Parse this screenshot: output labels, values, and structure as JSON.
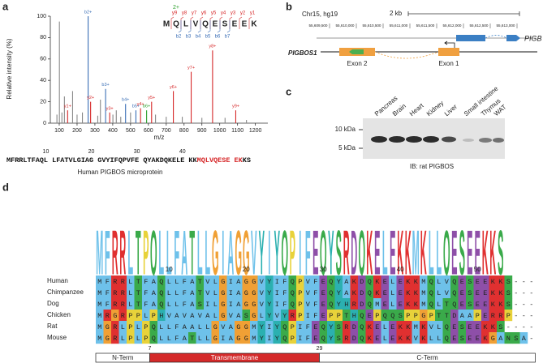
{
  "chart_data": {
    "type": "bar",
    "y_label": "Relative intensity (%)",
    "x_label": "m/z",
    "x": [
      87,
      101,
      115,
      129,
      147,
      175,
      200,
      230,
      262,
      276,
      316,
      331,
      360,
      383,
      401,
      420,
      445,
      472,
      500,
      530,
      556,
      590,
      618,
      640,
      700,
      740,
      790,
      840,
      900,
      960,
      1030,
      1090,
      1150
    ],
    "values": [
      8,
      95,
      10,
      25,
      12,
      30,
      8,
      10,
      100,
      20,
      7,
      22,
      32,
      10,
      8,
      12,
      6,
      18,
      10,
      12,
      14,
      12,
      20,
      8,
      6,
      30,
      6,
      48,
      5,
      68,
      5,
      12,
      3
    ],
    "colors": [
      "#888888",
      "#888888",
      "#888888",
      "#888888",
      "#d62728",
      "#888888",
      "#888888",
      "#888888",
      "#3b6fb6",
      "#d62728",
      "#888888",
      "#888888",
      "#3b6fb6",
      "#d62728",
      "#888888",
      "#888888",
      "#888888",
      "#3b6fb6",
      "#888888",
      "#3b6fb6",
      "#d62728",
      "#2ca02c",
      "#d62728",
      "#888888",
      "#888888",
      "#d62728",
      "#888888",
      "#d62728",
      "#888888",
      "#d62728",
      "#888888",
      "#d62728",
      "#888888"
    ],
    "peak_labels": [
      null,
      null,
      null,
      null,
      "y1+",
      null,
      null,
      null,
      "b2+",
      "y2+",
      null,
      null,
      "b3+",
      "y3+",
      null,
      null,
      null,
      "b4+",
      null,
      "b5+",
      "y4+",
      "b6+",
      "y5+",
      null,
      null,
      "y6+",
      null,
      "y7+",
      null,
      "y8+",
      null,
      "y9+",
      null
    ],
    "xlim": [
      50,
      1270
    ],
    "ylim": [
      0,
      100
    ],
    "xticks": [
      100,
      200,
      300,
      400,
      500,
      600,
      700,
      800,
      900,
      1000,
      1100,
      1200
    ],
    "yticks": [
      0,
      20,
      40,
      60,
      80,
      100
    ]
  },
  "panel_labels": [
    "a",
    "b",
    "c",
    "d"
  ],
  "peptide": {
    "charge": "2+",
    "residues": [
      "M",
      "Q",
      "L",
      "V",
      "Q",
      "E",
      "S",
      "E",
      "E",
      "K"
    ],
    "y_ions": [
      "y9",
      "y8",
      "y7",
      "y6",
      "y5",
      "y4",
      "y3",
      "y2",
      "y1"
    ],
    "b_ions": [
      "b2",
      "b3",
      "b4",
      "b5",
      "b6",
      "b7"
    ]
  },
  "protein": {
    "positions": [
      10,
      20,
      30,
      40
    ],
    "segments": [
      {
        "text": "MFRRLTFAQL LFATVLGIAG GVYIFQPVFE QYAKDQKELE KK",
        "color": "#111111"
      },
      {
        "text": "MQLVQESE EK",
        "color": "#d62728"
      },
      {
        "text": "KS",
        "color": "#111111"
      }
    ],
    "caption": "Human PIGBOS microprotein"
  },
  "panel_b": {
    "assembly": "Chr15, hg19",
    "scale": "2 kb",
    "coordinates": [
      "55,609,500",
      "55,610,000",
      "55,610,500",
      "55,611,000",
      "55,611,500",
      "55,612,000",
      "55,612,500",
      "55,613,000"
    ],
    "gene_top": "PIGB",
    "gene_bottom": "PIGBOS1",
    "exons": [
      "Exon 2",
      "Exon 1"
    ]
  },
  "panel_c": {
    "markers": [
      "10 kDa",
      "5 kDa"
    ],
    "lanes": [
      "Pancreas",
      "Brain",
      "Heart",
      "Kidney",
      "Liver",
      "Small intestine",
      "Thymus",
      "WAT"
    ],
    "caption": "IB: rat PIGBOS"
  },
  "panel_d": {
    "logo": "MFRRLTPQLLFATLLGIAGGVYIYQPIFEQYSRDQKELEKKMKLLQESEEKKS",
    "positions": [
      10,
      20,
      30,
      40,
      50
    ],
    "alignment": [
      {
        "species": "Human",
        "sequence": "MFRRLTFAQLLFATVLGIAGGVYIFQPVFEQYAKDQKELEKKMQLVQESEEKKS---"
      },
      {
        "species": "Chimpanzee",
        "sequence": "MFRRLTFAQLLFATVLGIAGGVYIFQPVFEQYAKDQKELEKKMQLVQESEEKKS---"
      },
      {
        "species": "Dog",
        "sequence": "MFRRLTFAQLLFASILGIAGGVYIFQPVFEQYHRDQMELEKKMQLTQESEEKKS---"
      },
      {
        "species": "Chicken",
        "sequence": "MRGRPPLPHVAVAVALGVASGLYVYRPIFEPPTHQEPQQSPPGPTTDAAPERRP---"
      },
      {
        "species": "Rat",
        "sequence": "MGRLPLPQLLFAALLGVAGGMYIYQPIFEQYSRDQKELEKKMKVLQESEEKKS----"
      },
      {
        "species": "Mouse",
        "sequence": "MGRLPLPQLLFATLLGIAGGMYIYQPIFEQYSRDQKELEKKVKLLQESEEKGANSA-"
      }
    ],
    "domains": [
      "N-Term",
      "Transmembrane",
      "C-Term"
    ],
    "boundaries": [
      7,
      29
    ]
  }
}
